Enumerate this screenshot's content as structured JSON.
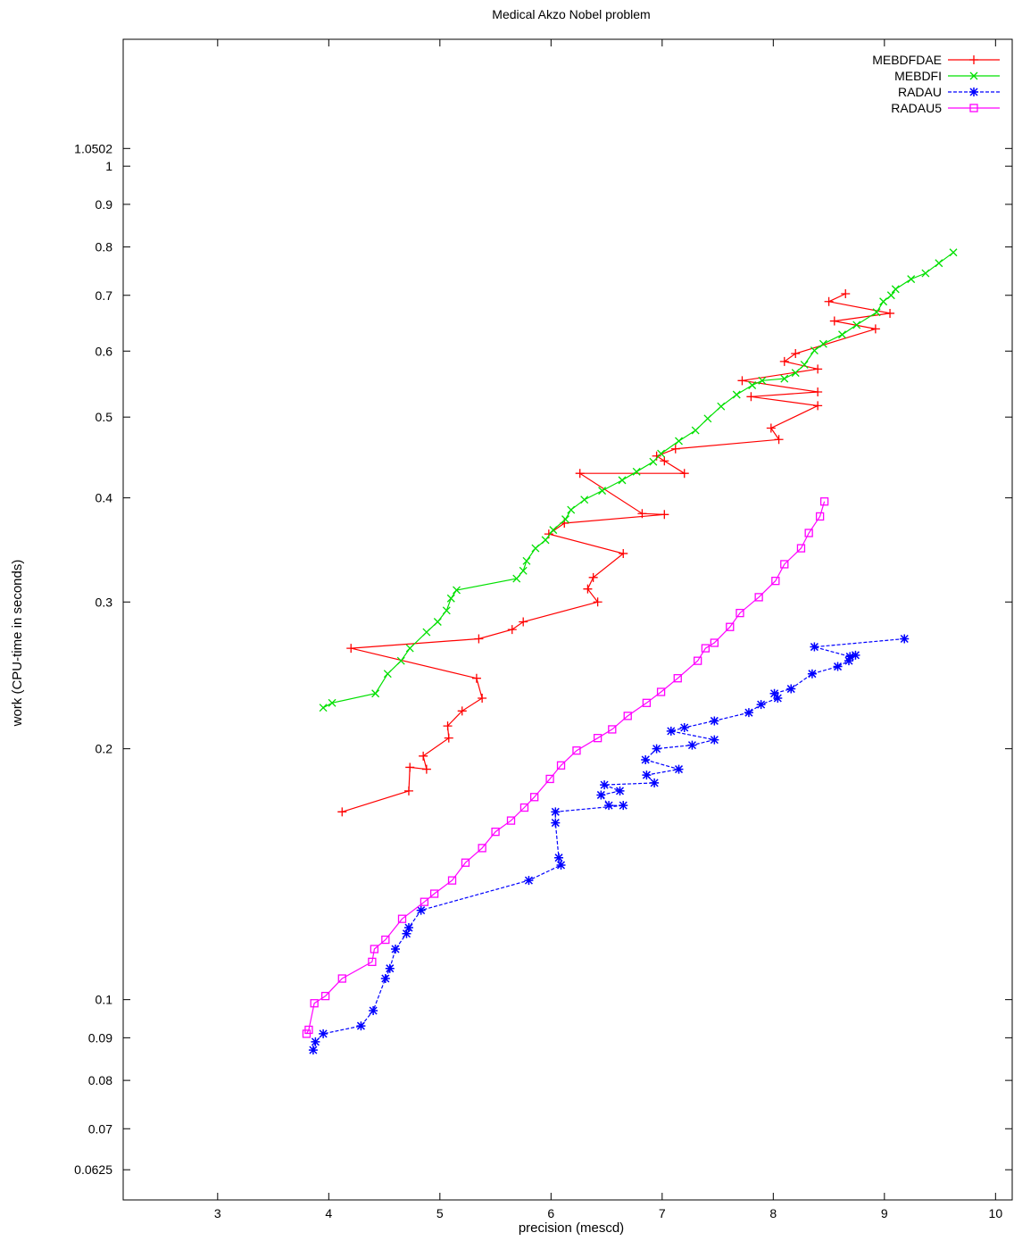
{
  "chart_data": {
    "type": "line",
    "title": "Medical Akzo Nobel problem",
    "xlabel": "precision (mescd)",
    "ylabel": "work (CPU-time in seconds)",
    "xlim": [
      2.15,
      10.15
    ],
    "ylim": [
      0.0575,
      1.42
    ],
    "y_scale": "log",
    "x_ticks": [
      3,
      4,
      5,
      6,
      7,
      8,
      9,
      10
    ],
    "y_ticks": [
      0.0625,
      0.07,
      0.08,
      0.09,
      0.1,
      0.2,
      0.3,
      0.4,
      0.5,
      0.6,
      0.7,
      0.8,
      0.9,
      1,
      1.0502
    ],
    "y_tick_labels": [
      "0.0625",
      "0.07",
      "0.08",
      "0.09",
      "0.1",
      "0.2",
      "0.3",
      "0.4",
      "0.5",
      "0.6",
      "0.7",
      "0.8",
      "0.9",
      "1",
      "1.0502"
    ],
    "legend_position": "top-right",
    "series": [
      {
        "name": "MEBDFDAE",
        "color": "#ff0000",
        "dash": "solid",
        "marker": "plus",
        "points": [
          [
            8.65,
            0.703
          ],
          [
            8.5,
            0.688
          ],
          [
            9.05,
            0.666
          ],
          [
            8.55,
            0.652
          ],
          [
            8.92,
            0.638
          ],
          [
            8.2,
            0.596
          ],
          [
            8.1,
            0.583
          ],
          [
            8.4,
            0.571
          ],
          [
            7.72,
            0.553
          ],
          [
            8.4,
            0.536
          ],
          [
            7.8,
            0.529
          ],
          [
            8.4,
            0.516
          ],
          [
            7.98,
            0.485
          ],
          [
            8.05,
            0.47
          ],
          [
            7.12,
            0.458
          ],
          [
            6.95,
            0.449
          ],
          [
            7.02,
            0.443
          ],
          [
            7.2,
            0.428
          ],
          [
            6.26,
            0.428
          ],
          [
            6.82,
            0.383
          ],
          [
            7.02,
            0.382
          ],
          [
            6.12,
            0.373
          ],
          [
            5.98,
            0.362
          ],
          [
            6.65,
            0.343
          ],
          [
            6.38,
            0.321
          ],
          [
            6.33,
            0.311
          ],
          [
            6.42,
            0.3
          ],
          [
            5.75,
            0.284
          ],
          [
            5.65,
            0.278
          ],
          [
            5.35,
            0.271
          ],
          [
            4.2,
            0.264
          ],
          [
            5.33,
            0.243
          ],
          [
            5.38,
            0.23
          ],
          [
            5.2,
            0.222
          ],
          [
            5.07,
            0.213
          ],
          [
            5.08,
            0.206
          ],
          [
            4.85,
            0.196
          ],
          [
            4.88,
            0.189
          ],
          [
            4.73,
            0.19
          ],
          [
            4.72,
            0.178
          ],
          [
            4.12,
            0.168
          ]
        ]
      },
      {
        "name": "MEBDFI",
        "color": "#00e000",
        "dash": "solid",
        "marker": "cross",
        "points": [
          [
            9.62,
            0.788
          ],
          [
            9.49,
            0.765
          ],
          [
            9.37,
            0.744
          ],
          [
            9.24,
            0.732
          ],
          [
            9.1,
            0.712
          ],
          [
            9.06,
            0.7
          ],
          [
            8.99,
            0.688
          ],
          [
            8.93,
            0.668
          ],
          [
            8.75,
            0.645
          ],
          [
            8.62,
            0.628
          ],
          [
            8.45,
            0.612
          ],
          [
            8.37,
            0.601
          ],
          [
            8.28,
            0.578
          ],
          [
            8.2,
            0.565
          ],
          [
            8.1,
            0.556
          ],
          [
            7.9,
            0.553
          ],
          [
            7.81,
            0.546
          ],
          [
            7.67,
            0.532
          ],
          [
            7.53,
            0.515
          ],
          [
            7.41,
            0.498
          ],
          [
            7.3,
            0.482
          ],
          [
            7.15,
            0.468
          ],
          [
            6.99,
            0.452
          ],
          [
            6.92,
            0.442
          ],
          [
            6.77,
            0.43
          ],
          [
            6.64,
            0.42
          ],
          [
            6.46,
            0.408
          ],
          [
            6.3,
            0.398
          ],
          [
            6.18,
            0.387
          ],
          [
            6.13,
            0.377
          ],
          [
            6.02,
            0.366
          ],
          [
            5.95,
            0.356
          ],
          [
            5.86,
            0.348
          ],
          [
            5.78,
            0.336
          ],
          [
            5.75,
            0.327
          ],
          [
            5.69,
            0.32
          ],
          [
            5.15,
            0.31
          ],
          [
            5.1,
            0.303
          ],
          [
            5.06,
            0.293
          ],
          [
            4.98,
            0.284
          ],
          [
            4.88,
            0.276
          ],
          [
            4.73,
            0.264
          ],
          [
            4.65,
            0.255
          ],
          [
            4.53,
            0.246
          ],
          [
            4.42,
            0.233
          ],
          [
            4.03,
            0.227
          ],
          [
            3.95,
            0.224
          ]
        ]
      },
      {
        "name": "RADAU",
        "color": "#0000ff",
        "dash": "dashed",
        "marker": "star",
        "points": [
          [
            9.18,
            0.271
          ],
          [
            8.37,
            0.265
          ],
          [
            8.69,
            0.258
          ],
          [
            8.74,
            0.259
          ],
          [
            8.68,
            0.255
          ],
          [
            8.58,
            0.251
          ],
          [
            8.35,
            0.246
          ],
          [
            8.16,
            0.236
          ],
          [
            8.01,
            0.233
          ],
          [
            8.04,
            0.23
          ],
          [
            7.89,
            0.226
          ],
          [
            7.78,
            0.221
          ],
          [
            7.47,
            0.216
          ],
          [
            7.2,
            0.212
          ],
          [
            7.08,
            0.21
          ],
          [
            7.47,
            0.205
          ],
          [
            7.27,
            0.202
          ],
          [
            6.95,
            0.2
          ],
          [
            6.85,
            0.194
          ],
          [
            7.15,
            0.189
          ],
          [
            6.86,
            0.186
          ],
          [
            6.93,
            0.182
          ],
          [
            6.48,
            0.181
          ],
          [
            6.62,
            0.178
          ],
          [
            6.45,
            0.176
          ],
          [
            6.52,
            0.171
          ],
          [
            6.65,
            0.171
          ],
          [
            6.04,
            0.168
          ],
          [
            6.04,
            0.163
          ],
          [
            6.07,
            0.148
          ],
          [
            6.09,
            0.145
          ],
          [
            5.8,
            0.139
          ],
          [
            4.83,
            0.128
          ],
          [
            4.72,
            0.122
          ],
          [
            4.7,
            0.12
          ],
          [
            4.6,
            0.115
          ],
          [
            4.55,
            0.109
          ],
          [
            4.51,
            0.106
          ],
          [
            4.4,
            0.097
          ],
          [
            4.29,
            0.093
          ],
          [
            3.95,
            0.091
          ],
          [
            3.88,
            0.089
          ],
          [
            3.86,
            0.087
          ]
        ]
      },
      {
        "name": "RADAU5",
        "color": "#ff00ff",
        "dash": "solid",
        "marker": "square",
        "points": [
          [
            8.46,
            0.396
          ],
          [
            8.42,
            0.38
          ],
          [
            8.32,
            0.363
          ],
          [
            8.25,
            0.348
          ],
          [
            8.1,
            0.333
          ],
          [
            8.02,
            0.318
          ],
          [
            7.87,
            0.304
          ],
          [
            7.7,
            0.291
          ],
          [
            7.61,
            0.28
          ],
          [
            7.47,
            0.268
          ],
          [
            7.39,
            0.264
          ],
          [
            7.32,
            0.255
          ],
          [
            7.14,
            0.243
          ],
          [
            6.99,
            0.234
          ],
          [
            6.86,
            0.227
          ],
          [
            6.69,
            0.219
          ],
          [
            6.55,
            0.211
          ],
          [
            6.42,
            0.206
          ],
          [
            6.23,
            0.199
          ],
          [
            6.09,
            0.191
          ],
          [
            5.99,
            0.184
          ],
          [
            5.85,
            0.175
          ],
          [
            5.76,
            0.17
          ],
          [
            5.64,
            0.164
          ],
          [
            5.5,
            0.159
          ],
          [
            5.38,
            0.152
          ],
          [
            5.23,
            0.146
          ],
          [
            5.11,
            0.139
          ],
          [
            4.95,
            0.134
          ],
          [
            4.86,
            0.131
          ],
          [
            4.66,
            0.125
          ],
          [
            4.51,
            0.118
          ],
          [
            4.41,
            0.115
          ],
          [
            4.39,
            0.111
          ],
          [
            4.12,
            0.106
          ],
          [
            3.97,
            0.101
          ],
          [
            3.87,
            0.099
          ],
          [
            3.82,
            0.092
          ],
          [
            3.8,
            0.091
          ]
        ]
      }
    ]
  }
}
